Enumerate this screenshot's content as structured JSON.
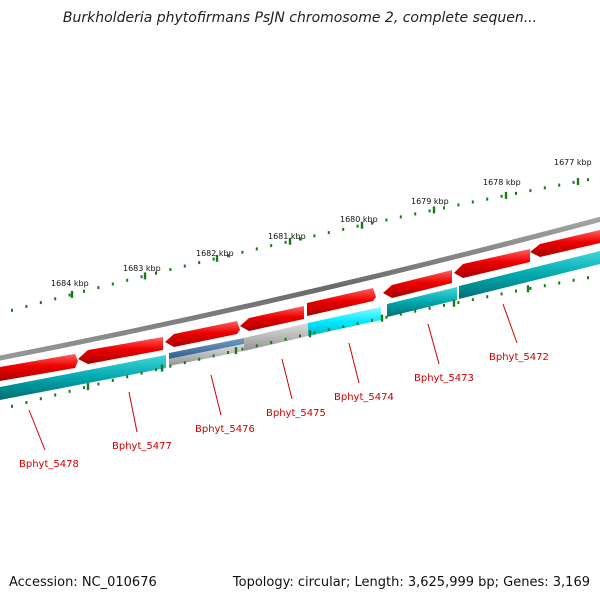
{
  "header": {
    "title": "Burkholderia phytofirmans PsJN chromosome 2, complete sequen..."
  },
  "footer": {
    "accession": "Accession: NC_010676",
    "topology": "Topology: circular; Length: 3,625,999 bp; Genes: 3,169"
  },
  "colors": {
    "forward_strand": "#e60000",
    "reverse_strand": "#00a8ad",
    "highlight_cyan": "#00eaff",
    "blue_gene": "#4a7aa8",
    "gray_gene": "#b4b4b4",
    "backbone": "#7a7a7a",
    "tick": "#1a7a1a",
    "label": "#cc0000"
  },
  "scale_ticks": [
    "1677 kbp",
    "1678 kbp",
    "1679 kbp",
    "1680 kbp",
    "1681 kbp",
    "1682 kbp",
    "1683 kbp",
    "1684 kbp"
  ],
  "genes": [
    {
      "name": "Bphyt_5472"
    },
    {
      "name": "Bphyt_5473"
    },
    {
      "name": "Bphyt_5474"
    },
    {
      "name": "Bphyt_5475"
    },
    {
      "name": "Bphyt_5476"
    },
    {
      "name": "Bphyt_5477"
    },
    {
      "name": "Bphyt_5478"
    }
  ]
}
